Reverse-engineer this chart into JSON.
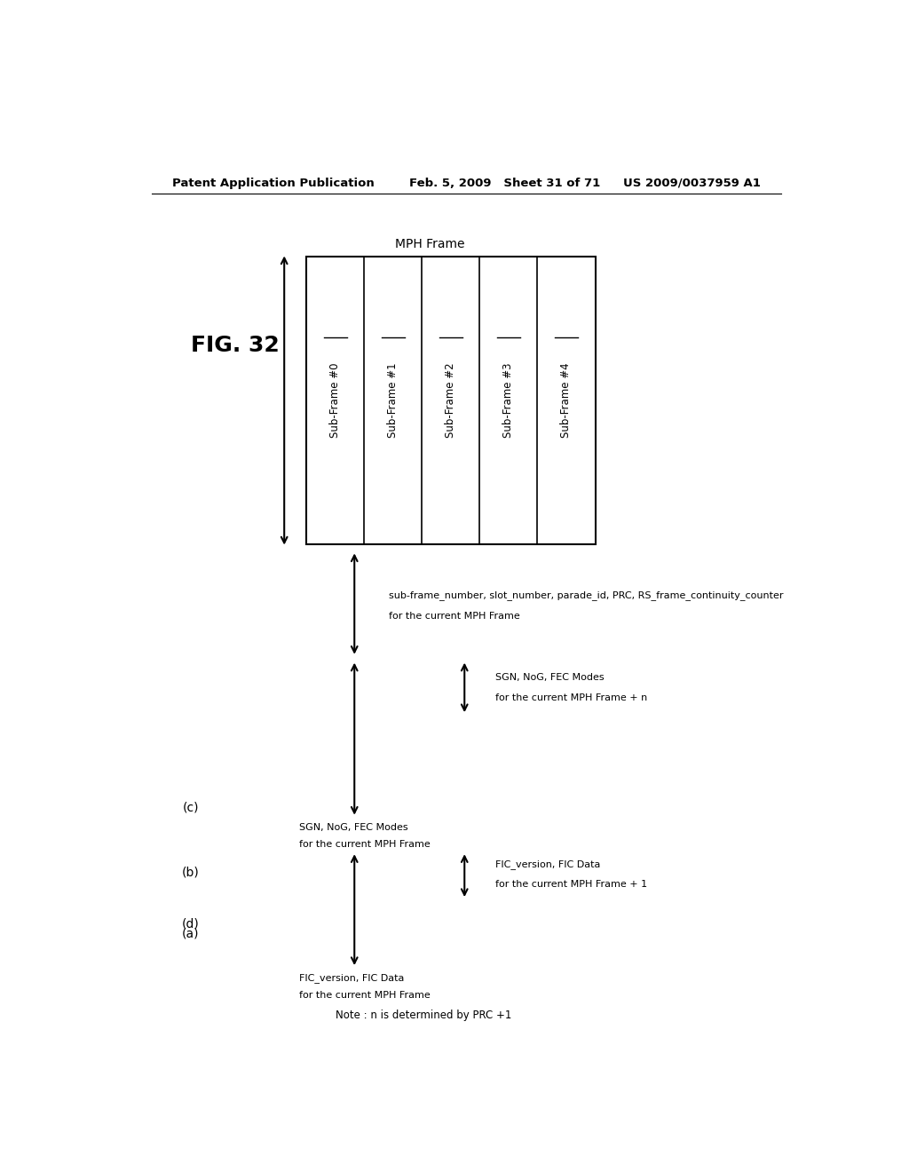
{
  "title": "FIG. 32",
  "header_left": "Patent Application Publication",
  "header_center": "Feb. 5, 2009   Sheet 31 of 71",
  "header_right": "US 2009/0037959 A1",
  "bg_color": "#ffffff",
  "mph_frame_label": "MPH Frame",
  "subframes": [
    "Sub-Frame #0",
    "Sub-Frame #1",
    "Sub-Frame #2",
    "Sub-Frame #3",
    "Sub-Frame #4"
  ],
  "label_a": "(a)",
  "label_b": "(b)",
  "label_c": "(c)",
  "label_d": "(d)",
  "text_b_line1": "sub-frame_number, slot_number, parade_id, PRC, RS_frame_continuity_counter",
  "text_b_line2": "for the current MPH Frame",
  "text_c1_line1": "SGN, NoG, FEC Modes",
  "text_c1_line2": "for the current MPH Frame",
  "text_c2_line1": "SGN, NoG, FEC Modes",
  "text_c2_line2": "for the current MPH Frame + n",
  "text_d1_line1": "FIC_version, FIC Data",
  "text_d1_line2": "for the current MPH Frame",
  "text_d2_line1": "FIC_version, FIC Data",
  "text_d2_line2": "for the current MPH Frame + 1",
  "note": "Note : n is determined by PRC +1"
}
